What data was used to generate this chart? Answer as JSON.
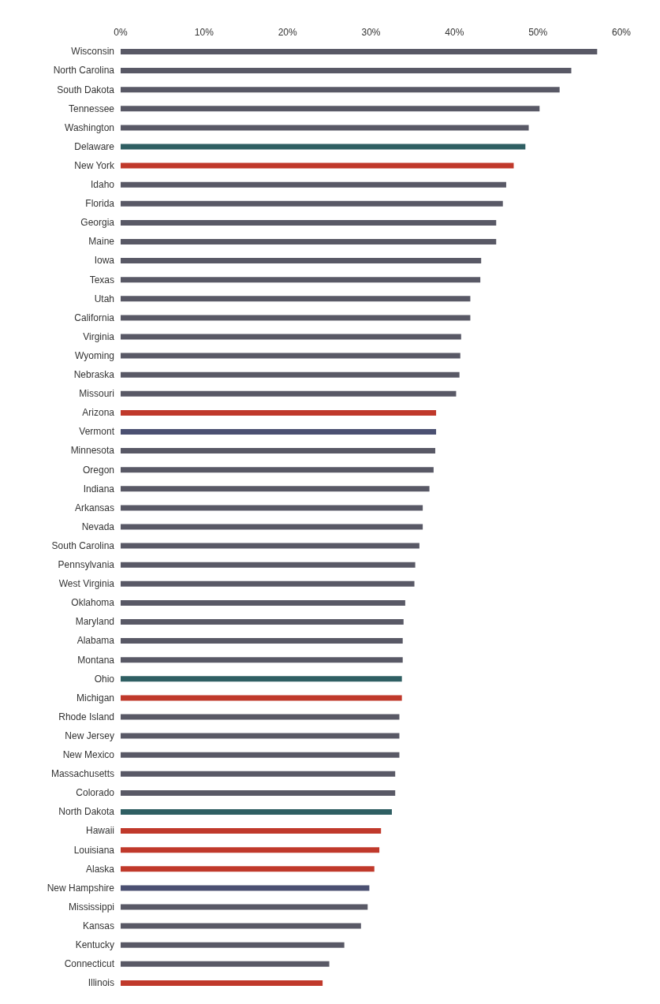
{
  "chart_data": {
    "type": "bar",
    "orientation": "horizontal",
    "categories": [
      "Wisconsin",
      "North Carolina",
      "South Dakota",
      "Tennessee",
      "Washington",
      "Delaware",
      "New York",
      "Idaho",
      "Florida",
      "Georgia",
      "Maine",
      "Iowa",
      "Texas",
      "Utah",
      "California",
      "Virginia",
      "Wyoming",
      "Nebraska",
      "Missouri",
      "Arizona",
      "Vermont",
      "Minnesota",
      "Oregon",
      "Indiana",
      "Arkansas",
      "Nevada",
      "South Carolina",
      "Pennsylvania",
      "West Virginia",
      "Oklahoma",
      "Maryland",
      "Alabama",
      "Montana",
      "Ohio",
      "Michigan",
      "Rhode Island",
      "New Jersey",
      "New Mexico",
      "Massachusetts",
      "Colorado",
      "North Dakota",
      "Hawaii",
      "Louisiana",
      "Alaska",
      "New Hampshire",
      "Mississippi",
      "Kansas",
      "Kentucky",
      "Connecticut",
      "Illinois"
    ],
    "values": [
      57.1,
      54.0,
      52.6,
      50.2,
      48.9,
      48.5,
      47.1,
      46.2,
      45.8,
      45.0,
      45.0,
      43.2,
      43.1,
      41.9,
      41.9,
      40.8,
      40.7,
      40.6,
      40.2,
      37.8,
      37.8,
      37.7,
      37.5,
      37.0,
      36.2,
      36.2,
      35.8,
      35.3,
      35.2,
      34.1,
      33.9,
      33.8,
      33.8,
      33.7,
      33.7,
      33.4,
      33.4,
      33.4,
      32.9,
      32.9,
      32.5,
      31.2,
      31.0,
      30.4,
      29.8,
      29.6,
      28.8,
      26.8,
      25.0,
      24.2
    ],
    "colors": [
      "#595966",
      "#595966",
      "#595966",
      "#595966",
      "#595966",
      "#2f5f63",
      "#c0392b",
      "#595966",
      "#595966",
      "#595966",
      "#595966",
      "#595966",
      "#595966",
      "#595966",
      "#595966",
      "#595966",
      "#595966",
      "#595966",
      "#595966",
      "#c0392b",
      "#4b5072",
      "#595966",
      "#595966",
      "#595966",
      "#595966",
      "#595966",
      "#595966",
      "#595966",
      "#595966",
      "#595966",
      "#595966",
      "#595966",
      "#595966",
      "#2f5f63",
      "#c0392b",
      "#595966",
      "#595966",
      "#595966",
      "#595966",
      "#595966",
      "#2f5f63",
      "#c0392b",
      "#c0392b",
      "#c0392b",
      "#4b5072",
      "#595966",
      "#595966",
      "#595966",
      "#595966",
      "#c0392b"
    ],
    "xlim": [
      0,
      60
    ],
    "xticks": [
      {
        "value": 0,
        "label": "0%"
      },
      {
        "value": 10,
        "label": "10%"
      },
      {
        "value": 20,
        "label": "20%"
      },
      {
        "value": 30,
        "label": "30%"
      },
      {
        "value": 40,
        "label": "40%"
      },
      {
        "value": 50,
        "label": "50%"
      },
      {
        "value": 60,
        "label": "60%"
      }
    ],
    "grid": false
  }
}
